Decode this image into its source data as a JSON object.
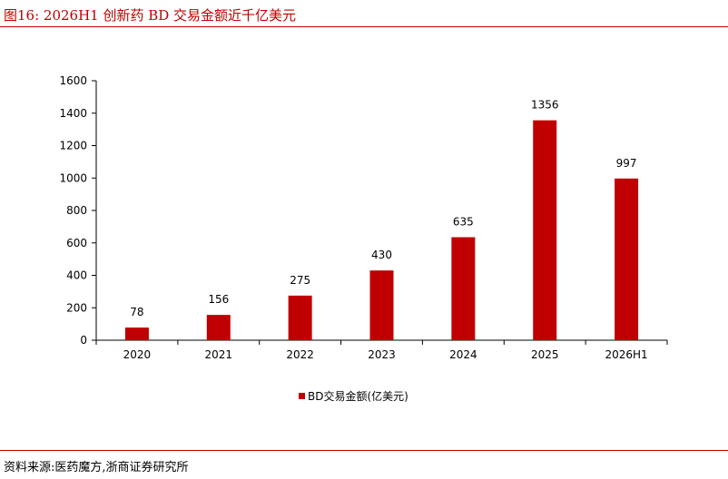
{
  "figure": {
    "title": "图16:   2026H1 创新药 BD 交易金额近千亿美元",
    "source": "资料来源:医药魔方,浙商证券研究所"
  },
  "chart_data": {
    "type": "bar",
    "categories": [
      "2020",
      "2021",
      "2022",
      "2023",
      "2024",
      "2025",
      "2026H1"
    ],
    "series": [
      {
        "name": "BD交易金额(亿美元)",
        "values": [
          78,
          156,
          275,
          430,
          635,
          1356,
          997
        ],
        "color": "#c00000"
      }
    ],
    "data_labels": [
      "78",
      "156",
      "275",
      "430",
      "635",
      "1356",
      "997"
    ],
    "ylim": [
      0,
      1600
    ],
    "yticks": [
      0,
      200,
      400,
      600,
      800,
      1000,
      1200,
      1400,
      1600
    ],
    "ytick_labels": [
      "0",
      "200",
      "400",
      "600",
      "800",
      "1000",
      "1200",
      "1400",
      "1600"
    ],
    "xlabel": "",
    "ylabel": "",
    "grid": false,
    "legend_position": "bottom"
  }
}
